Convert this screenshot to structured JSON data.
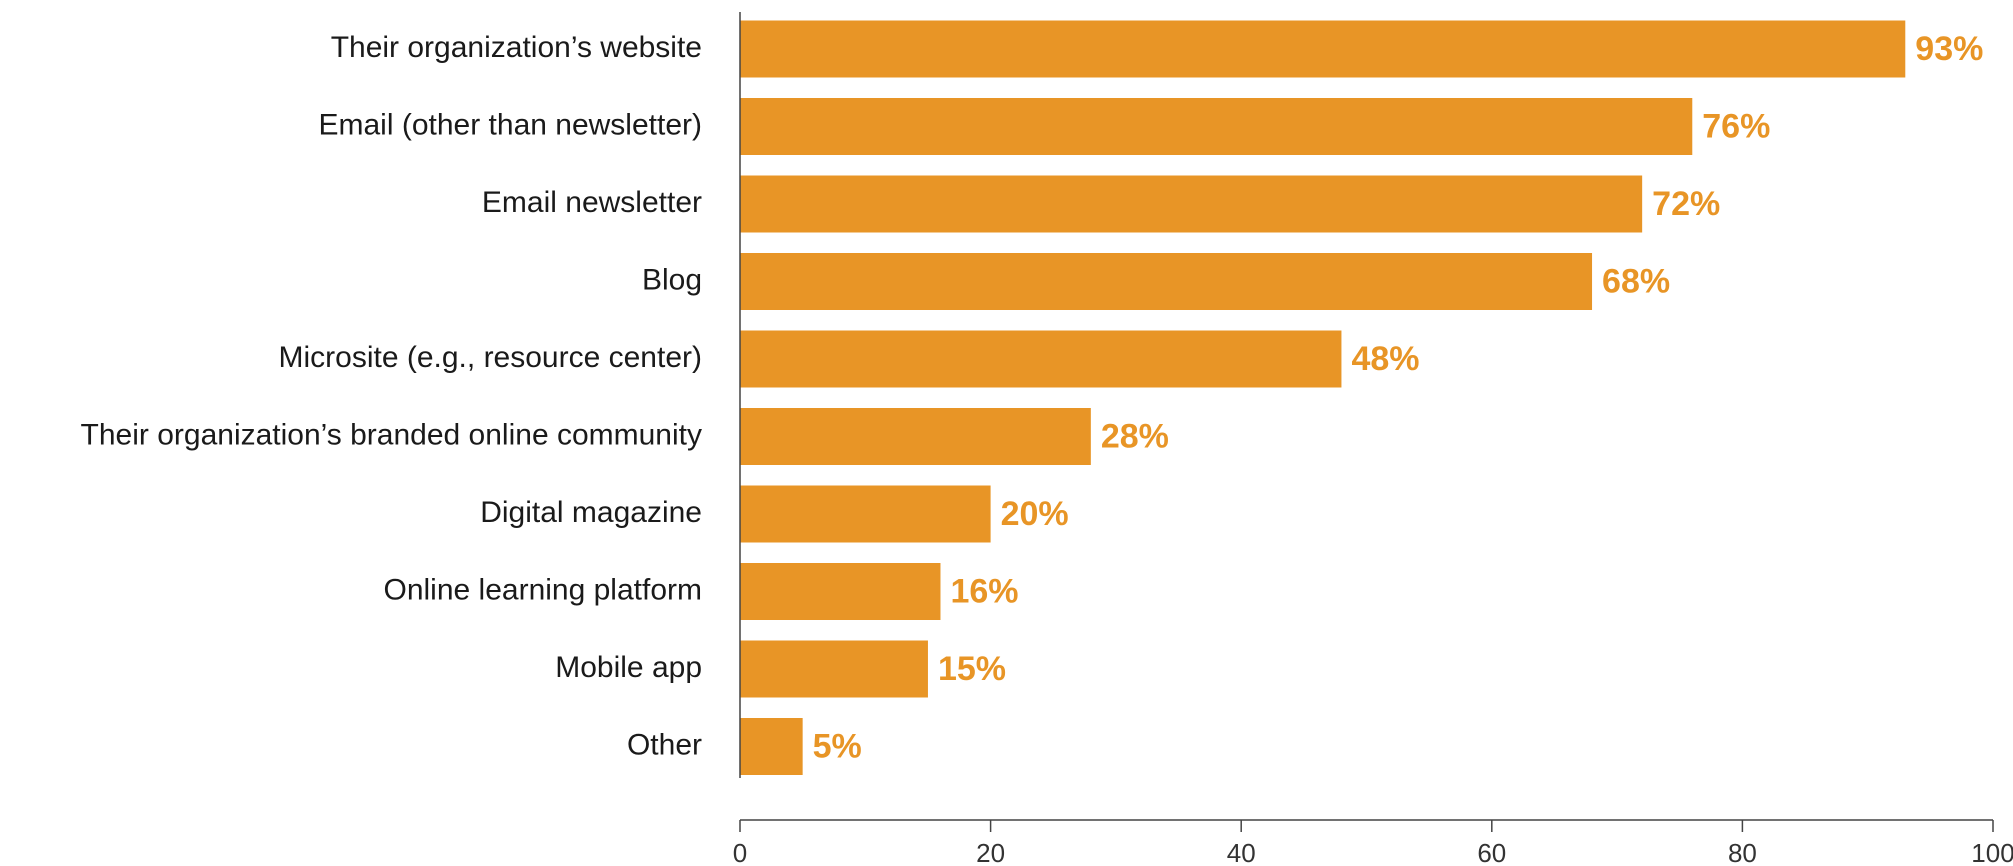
{
  "chart_data": {
    "type": "bar",
    "orientation": "horizontal",
    "categories": [
      "Their organization’s website",
      "Email (other than newsletter)",
      "Email newsletter",
      "Blog",
      "Microsite (e.g., resource center)",
      "Their organization’s branded online community",
      "Digital magazine",
      "Online learning platform",
      "Mobile app",
      "Other"
    ],
    "values": [
      93,
      76,
      72,
      68,
      48,
      28,
      20,
      16,
      15,
      5
    ],
    "value_labels": [
      "93%",
      "76%",
      "72%",
      "68%",
      "48%",
      "28%",
      "20%",
      "16%",
      "15%",
      "5%"
    ],
    "xlim": [
      0,
      100
    ],
    "xticks": [
      0,
      20,
      40,
      60,
      80,
      100
    ],
    "title": "",
    "xlabel": "",
    "ylabel": "",
    "grid": false,
    "legend": "none",
    "colors": {
      "bar": "#E89526",
      "value_label": "#E89526",
      "axis": "#444444",
      "text": "#1a1a1a"
    }
  }
}
